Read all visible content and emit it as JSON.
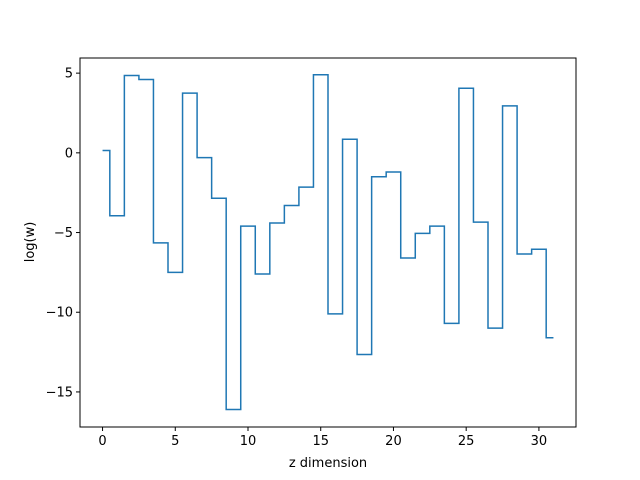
{
  "chart_data": {
    "type": "line",
    "drawstyle": "steps-mid",
    "title": "",
    "xlabel": "z dimension",
    "ylabel": "log(w)",
    "xlim": [
      -1.55,
      32.55
    ],
    "ylim": [
      -17.2,
      5.95
    ],
    "xticks": [
      0,
      5,
      10,
      15,
      20,
      25,
      30
    ],
    "yticks": [
      5,
      0,
      -5,
      -10,
      -15
    ],
    "ytick_labels": [
      "5",
      "0",
      "−5",
      "−10",
      "−15"
    ],
    "grid": false,
    "legend": "none",
    "series": [
      {
        "color": "#1f77b4",
        "x": [
          0,
          1,
          2,
          3,
          4,
          5,
          6,
          7,
          8,
          9,
          10,
          11,
          12,
          13,
          14,
          15,
          16,
          17,
          18,
          19,
          20,
          21,
          22,
          23,
          24,
          25,
          26,
          27,
          28,
          29,
          30,
          31
        ],
        "values": [
          0.15,
          -3.95,
          4.85,
          4.6,
          -5.65,
          -7.5,
          3.75,
          -0.3,
          -2.85,
          -16.1,
          -4.6,
          -7.6,
          -4.4,
          -3.3,
          -2.15,
          4.9,
          -10.1,
          0.85,
          -12.65,
          -1.5,
          -1.2,
          -6.6,
          -5.05,
          -4.6,
          -10.7,
          4.05,
          -4.35,
          -11.0,
          2.95,
          -6.35,
          -6.05,
          -11.6
        ]
      }
    ]
  }
}
